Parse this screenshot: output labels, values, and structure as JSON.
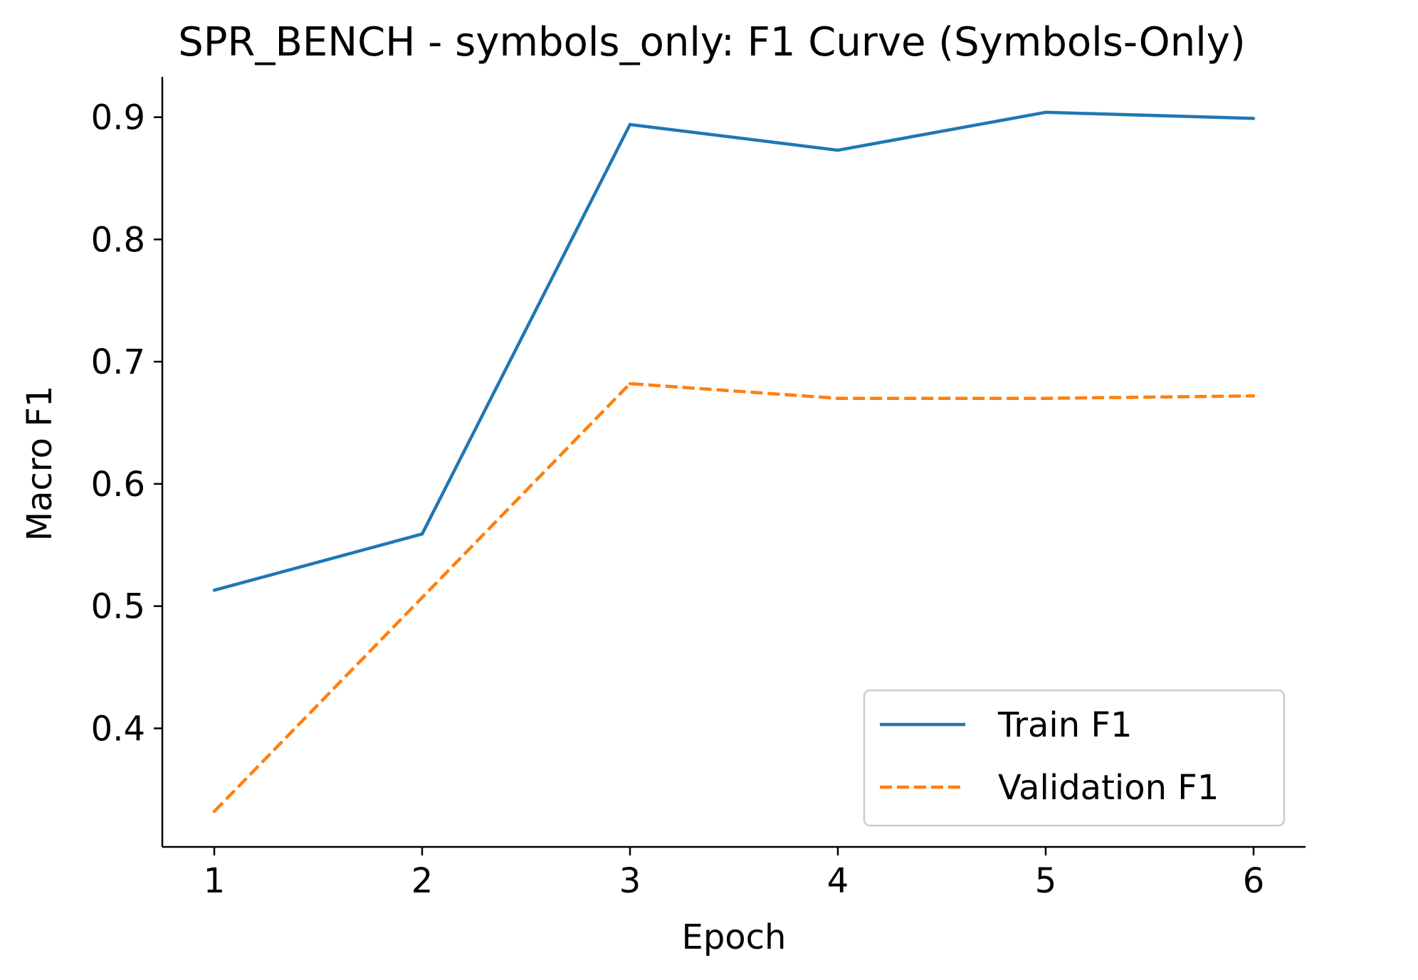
{
  "chart_data": {
    "type": "line",
    "title": "SPR_BENCH - symbols_only: F1 Curve (Symbols-Only)",
    "xlabel": "Epoch",
    "ylabel": "Macro F1",
    "x": [
      1,
      2,
      3,
      4,
      5,
      6
    ],
    "x_ticks": [
      1,
      2,
      3,
      4,
      5,
      6
    ],
    "y_ticks": [
      "0.4",
      "0.5",
      "0.6",
      "0.7",
      "0.8",
      "0.9"
    ],
    "xlim": [
      0.75,
      6.25
    ],
    "ylim": [
      0.303,
      0.933
    ],
    "grid": false,
    "legend_position": "lower-right",
    "series": [
      {
        "name": "Train F1",
        "values": [
          0.513,
          0.559,
          0.894,
          0.873,
          0.904,
          0.899
        ],
        "color": "#1f77b4",
        "style": "solid"
      },
      {
        "name": "Validation F1",
        "values": [
          0.332,
          0.507,
          0.682,
          0.67,
          0.67,
          0.672
        ],
        "color": "#ff7f0e",
        "style": "dashed"
      }
    ]
  }
}
